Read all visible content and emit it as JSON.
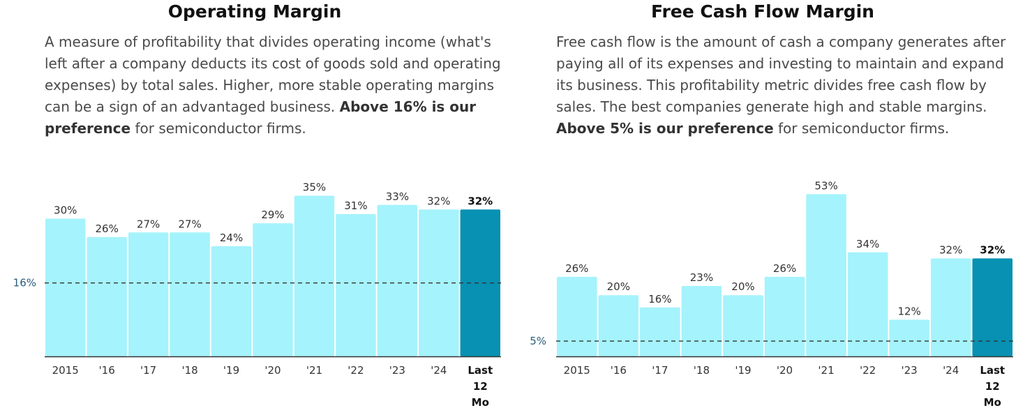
{
  "panels": [
    {
      "title": "Operating Margin",
      "desc_intro": "A measure of profitability that divides operating income (what's left after a company deducts its cost of goods sold and operating expenses) by total sales. Higher, more stable operating margins can be a sign of an advantaged business. ",
      "desc_bold": "Above 16% is our preference",
      "desc_tail": " for semiconductor firms."
    },
    {
      "title": "Free Cash Flow Margin",
      "desc_intro": "Free cash flow is the amount of cash a company generates after paying all of its expenses and investing to maintain and expand its business. This profitability metric divides free cash flow by sales. The best companies generate high and stable margins. ",
      "desc_bold": "Above 5% is our preference",
      "desc_tail": " for semiconductor firms."
    }
  ],
  "colors": {
    "bar": "#a5f3fc",
    "bar_highlight": "#0891b2",
    "threshold": "#333333",
    "axis": "#333333"
  },
  "chart_data": [
    {
      "type": "bar",
      "title": "Operating Margin",
      "categories": [
        "2015",
        "'16",
        "'17",
        "'18",
        "'19",
        "'20",
        "'21",
        "'22",
        "'23",
        "'24",
        "Last 12 Mo"
      ],
      "values": [
        30,
        26,
        27,
        27,
        24,
        29,
        35,
        31,
        33,
        32,
        32
      ],
      "value_labels": [
        "30%",
        "26%",
        "27%",
        "27%",
        "24%",
        "29%",
        "35%",
        "31%",
        "33%",
        "32%",
        "32%"
      ],
      "highlight_index": 10,
      "reference_line": {
        "value": 16,
        "label": "16%"
      },
      "ylim": [
        0,
        36
      ],
      "grid": false,
      "legend": "none"
    },
    {
      "type": "bar",
      "title": "Free Cash Flow Margin",
      "categories": [
        "2015",
        "'16",
        "'17",
        "'18",
        "'19",
        "'20",
        "'21",
        "'22",
        "'23",
        "'24",
        "Last 12 Mo"
      ],
      "values": [
        26,
        20,
        16,
        23,
        20,
        26,
        53,
        34,
        12,
        32,
        32
      ],
      "value_labels": [
        "26%",
        "20%",
        "16%",
        "23%",
        "20%",
        "26%",
        "53%",
        "34%",
        "12%",
        "32%",
        "32%"
      ],
      "highlight_index": 10,
      "reference_line": {
        "value": 5,
        "label": "5%"
      },
      "ylim": [
        0,
        54
      ],
      "grid": false,
      "legend": "none"
    }
  ]
}
